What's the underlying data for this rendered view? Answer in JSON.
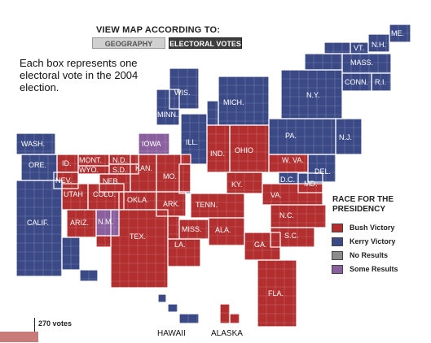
{
  "toggle": {
    "title": "VIEW MAP ACCORDING TO:",
    "geography_label": "GEOGRAPHY",
    "electoral_label": "ELECTORAL VOTES",
    "selected": "ELECTORAL VOTES"
  },
  "intro": "Each box represents one electoral vote in the 2004 election.",
  "legend": {
    "title": "RACE FOR THE PRESIDENCY",
    "items": [
      {
        "label": "Bush Victory",
        "color": "#b22e2f"
      },
      {
        "label": "Kerry Victory",
        "color": "#3b4a86"
      },
      {
        "label": "No Results",
        "color": "#8c8c8c"
      },
      {
        "label": "Some Results",
        "color": "#8a5f9e"
      }
    ]
  },
  "scale": {
    "label": "270 votes",
    "color": "#c87b78"
  },
  "colors": {
    "bush": "#b22e2f",
    "kerry": "#3b4a86",
    "some": "#8a5f9e",
    "none": "#8c8c8c"
  },
  "states": [
    {
      "label": "ME.",
      "result": "kerry"
    },
    {
      "label": "N.H.",
      "result": "kerry"
    },
    {
      "label": "VT.",
      "result": "kerry"
    },
    {
      "label": "MASS.",
      "result": "kerry"
    },
    {
      "label": "CONN.",
      "result": "kerry"
    },
    {
      "label": "R.I.",
      "result": "kerry"
    },
    {
      "label": "N.Y.",
      "result": "kerry"
    },
    {
      "label": "N.J.",
      "result": "kerry"
    },
    {
      "label": "PA.",
      "result": "kerry"
    },
    {
      "label": "DEL.",
      "result": "kerry"
    },
    {
      "label": "MD.",
      "result": "kerry"
    },
    {
      "label": "D.C.",
      "result": "kerry"
    },
    {
      "label": "W. VA.",
      "result": "bush"
    },
    {
      "label": "VA.",
      "result": "bush"
    },
    {
      "label": "N.C.",
      "result": "bush"
    },
    {
      "label": "S.C.",
      "result": "bush"
    },
    {
      "label": "GA.",
      "result": "bush"
    },
    {
      "label": "FLA.",
      "result": "bush"
    },
    {
      "label": "ALA.",
      "result": "bush"
    },
    {
      "label": "MISS.",
      "result": "bush"
    },
    {
      "label": "TENN.",
      "result": "bush"
    },
    {
      "label": "KY.",
      "result": "bush"
    },
    {
      "label": "OHIO",
      "result": "bush"
    },
    {
      "label": "IND.",
      "result": "bush"
    },
    {
      "label": "MICH.",
      "result": "kerry"
    },
    {
      "label": "ILL.",
      "result": "kerry"
    },
    {
      "label": "WIS.",
      "result": "kerry"
    },
    {
      "label": "MINN.",
      "result": "kerry"
    },
    {
      "label": "IOWA",
      "result": "some"
    },
    {
      "label": "MO.",
      "result": "bush"
    },
    {
      "label": "ARK.",
      "result": "bush"
    },
    {
      "label": "LA.",
      "result": "bush"
    },
    {
      "label": "TEX.",
      "result": "bush"
    },
    {
      "label": "OKLA.",
      "result": "bush"
    },
    {
      "label": "KAN.",
      "result": "bush"
    },
    {
      "label": "NEB.",
      "result": "bush"
    },
    {
      "label": "S.D.",
      "result": "bush"
    },
    {
      "label": "N.D.",
      "result": "bush"
    },
    {
      "label": "MONT.",
      "result": "bush"
    },
    {
      "label": "WYO.",
      "result": "bush"
    },
    {
      "label": "COLO.",
      "result": "bush"
    },
    {
      "label": "N.M.",
      "result": "some"
    },
    {
      "label": "ARIZ.",
      "result": "bush"
    },
    {
      "label": "UTAH",
      "result": "bush"
    },
    {
      "label": "NEV.",
      "result": "bush"
    },
    {
      "label": "ID.",
      "result": "bush"
    },
    {
      "label": "ORE.",
      "result": "kerry"
    },
    {
      "label": "WASH.",
      "result": "kerry"
    },
    {
      "label": "CALIF.",
      "result": "kerry"
    },
    {
      "label": "HAWAII",
      "result": "kerry"
    },
    {
      "label": "ALASKA",
      "result": "bush"
    }
  ]
}
